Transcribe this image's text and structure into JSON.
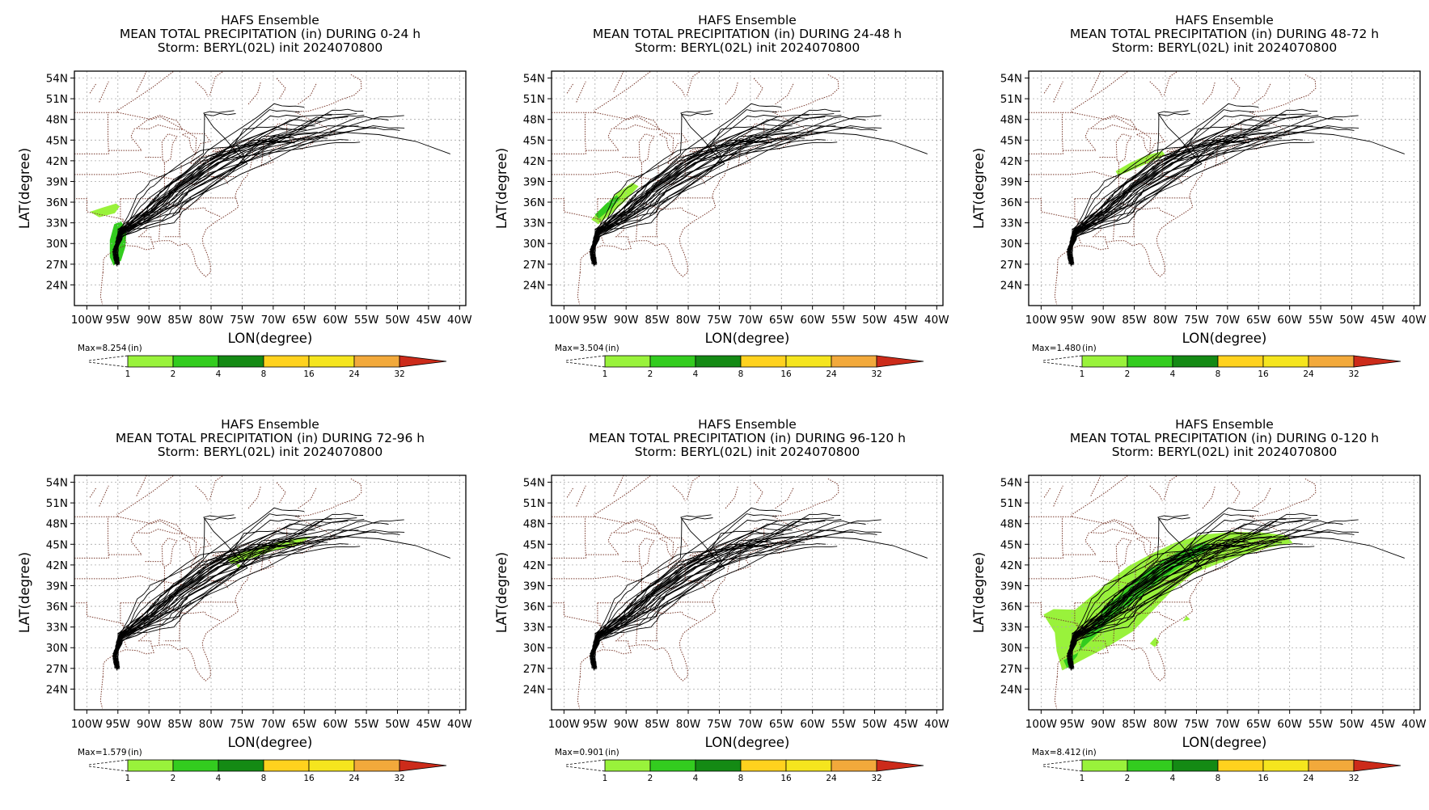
{
  "colors": {
    "track": "#000000",
    "border": "#7a3b2e",
    "grid": "#a8a8a8",
    "bins": [
      "#99f23b",
      "#33cc1f",
      "#148a14",
      "#ffd21e",
      "#f5e51e",
      "#f2a93b",
      "#e8843b",
      "#cc2b1a"
    ]
  },
  "chart_data": [
    {
      "type": "map",
      "title": "HAFS Ensemble",
      "subtitle": "MEAN TOTAL PRECIPITATION (in) DURING  0-24 h",
      "storm_line": "Storm: BERYL(02L) init 2024070800",
      "xlabel": "LON(degree)",
      "ylabel": "LAT(degree)",
      "xticks": [
        "100W",
        "95W",
        "90W",
        "85W",
        "80W",
        "75W",
        "70W",
        "65W",
        "60W",
        "55W",
        "50W",
        "45W",
        "40W"
      ],
      "yticks": [
        "54N",
        "51N",
        "48N",
        "45N",
        "42N",
        "39N",
        "36N",
        "33N",
        "30N",
        "27N",
        "24N"
      ],
      "xlim": [
        -102,
        -39
      ],
      "ylim": [
        21,
        55
      ],
      "grid": true,
      "max_label": "Max=8.254",
      "unit_label": "(in)",
      "legend_levels": [
        "1",
        "2",
        "4",
        "8",
        "16",
        "24",
        "32"
      ],
      "precip_regions": [
        {
          "color": "#33cc1f",
          "poly": [
            [
              -95.7,
              26.8
            ],
            [
              -94.5,
              27.5
            ],
            [
              -93.8,
              29.5
            ],
            [
              -93.6,
              32
            ],
            [
              -94.5,
              33.2
            ],
            [
              -95.6,
              32.8
            ],
            [
              -96.3,
              30.5
            ],
            [
              -96.3,
              28
            ]
          ]
        },
        {
          "color": "#99f23b",
          "poly": [
            [
              -98,
              33.8
            ],
            [
              -95.5,
              34.4
            ],
            [
              -94.7,
              35.4
            ],
            [
              -95.3,
              35.8
            ],
            [
              -97.5,
              35.2
            ],
            [
              -99.5,
              34.6
            ]
          ]
        }
      ]
    },
    {
      "type": "map",
      "title": "HAFS Ensemble",
      "subtitle": "MEAN TOTAL PRECIPITATION (in) DURING 24-48 h",
      "storm_line": "Storm: BERYL(02L) init 2024070800",
      "xlabel": "LON(degree)",
      "ylabel": "LAT(degree)",
      "xticks": [
        "100W",
        "95W",
        "90W",
        "85W",
        "80W",
        "75W",
        "70W",
        "65W",
        "60W",
        "55W",
        "50W",
        "45W",
        "40W"
      ],
      "yticks": [
        "54N",
        "51N",
        "48N",
        "45N",
        "42N",
        "39N",
        "36N",
        "33N",
        "30N",
        "27N",
        "24N"
      ],
      "xlim": [
        -102,
        -39
      ],
      "ylim": [
        21,
        55
      ],
      "grid": true,
      "max_label": "Max=3.504",
      "unit_label": "(in)",
      "legend_levels": [
        "1",
        "2",
        "4",
        "8",
        "16",
        "24",
        "32"
      ],
      "precip_regions": [
        {
          "color": "#99f23b",
          "poly": [
            [
              -95.6,
              33.5
            ],
            [
              -93.5,
              35.5
            ],
            [
              -91.5,
              37.3
            ],
            [
              -89,
              38.8
            ],
            [
              -88,
              38.3
            ],
            [
              -90,
              36.3
            ],
            [
              -92.5,
              34.2
            ],
            [
              -94.5,
              32.8
            ]
          ]
        },
        {
          "color": "#33cc1f",
          "poly": [
            [
              -95,
              34.2
            ],
            [
              -93.2,
              35.8
            ],
            [
              -91.5,
              37
            ],
            [
              -91,
              36.4
            ],
            [
              -92.8,
              34.8
            ],
            [
              -94.4,
              33.6
            ]
          ]
        }
      ]
    },
    {
      "type": "map",
      "title": "HAFS Ensemble",
      "subtitle": "MEAN TOTAL PRECIPITATION (in) DURING 48-72 h",
      "storm_line": "Storm: BERYL(02L) init 2024070800",
      "xlabel": "LON(degree)",
      "ylabel": "LAT(degree)",
      "xticks": [
        "100W",
        "95W",
        "90W",
        "85W",
        "80W",
        "75W",
        "70W",
        "65W",
        "60W",
        "55W",
        "50W",
        "45W",
        "40W"
      ],
      "yticks": [
        "54N",
        "51N",
        "48N",
        "45N",
        "42N",
        "39N",
        "36N",
        "33N",
        "30N",
        "27N",
        "24N"
      ],
      "xlim": [
        -102,
        -39
      ],
      "ylim": [
        21,
        55
      ],
      "grid": true,
      "max_label": "Max=1.480",
      "unit_label": "(in)",
      "legend_levels": [
        "1",
        "2",
        "4",
        "8",
        "16",
        "24",
        "32"
      ],
      "precip_regions": [
        {
          "color": "#99f23b",
          "poly": [
            [
              -88,
              40.5
            ],
            [
              -85.5,
              41.8
            ],
            [
              -83,
              42.8
            ],
            [
              -80.5,
              43.4
            ],
            [
              -80,
              42.8
            ],
            [
              -82.5,
              41.8
            ],
            [
              -85.5,
              40.6
            ],
            [
              -87.6,
              39.8
            ]
          ]
        }
      ]
    },
    {
      "type": "map",
      "title": "HAFS Ensemble",
      "subtitle": "MEAN TOTAL PRECIPITATION (in) DURING 72-96 h",
      "storm_line": "Storm: BERYL(02L) init 2024070800",
      "xlabel": "LON(degree)",
      "ylabel": "LAT(degree)",
      "xticks": [
        "100W",
        "95W",
        "90W",
        "85W",
        "80W",
        "75W",
        "70W",
        "65W",
        "60W",
        "55W",
        "50W",
        "45W",
        "40W"
      ],
      "yticks": [
        "54N",
        "51N",
        "48N",
        "45N",
        "42N",
        "39N",
        "36N",
        "33N",
        "30N",
        "27N",
        "24N"
      ],
      "xlim": [
        -102,
        -39
      ],
      "ylim": [
        21,
        55
      ],
      "grid": true,
      "max_label": "Max=1.579",
      "unit_label": "(in)",
      "legend_levels": [
        "1",
        "2",
        "4",
        "8",
        "16",
        "24",
        "32"
      ],
      "precip_regions": [
        {
          "color": "#99f23b",
          "poly": [
            [
              -77.5,
              43
            ],
            [
              -74,
              44.2
            ],
            [
              -70.5,
              45
            ],
            [
              -66.5,
              45.8
            ],
            [
              -64,
              46.2
            ],
            [
              -65.5,
              45
            ],
            [
              -69.5,
              44.2
            ],
            [
              -73.5,
              43
            ],
            [
              -76.8,
              42.2
            ]
          ]
        },
        {
          "color": "#99f23b",
          "poly": [
            [
              -76.2,
              42.3
            ],
            [
              -75.6,
              41.5
            ],
            [
              -75.2,
              42
            ]
          ]
        }
      ]
    },
    {
      "type": "map",
      "title": "HAFS Ensemble",
      "subtitle": "MEAN TOTAL PRECIPITATION (in) DURING 96-120 h",
      "storm_line": "Storm: BERYL(02L) init 2024070800",
      "xlabel": "LON(degree)",
      "ylabel": "LAT(degree)",
      "xticks": [
        "100W",
        "95W",
        "90W",
        "85W",
        "80W",
        "75W",
        "70W",
        "65W",
        "60W",
        "55W",
        "50W",
        "45W",
        "40W"
      ],
      "yticks": [
        "54N",
        "51N",
        "48N",
        "45N",
        "42N",
        "39N",
        "36N",
        "33N",
        "30N",
        "27N",
        "24N"
      ],
      "xlim": [
        -102,
        -39
      ],
      "ylim": [
        21,
        55
      ],
      "grid": true,
      "max_label": "Max=0.901",
      "unit_label": "(in)",
      "legend_levels": [
        "1",
        "2",
        "4",
        "8",
        "16",
        "24",
        "32"
      ],
      "precip_regions": []
    },
    {
      "type": "map",
      "title": "HAFS Ensemble",
      "subtitle": "MEAN TOTAL PRECIPITATION (in) DURING 0-120 h",
      "storm_line": "Storm: BERYL(02L) init 2024070800",
      "xlabel": "LON(degree)",
      "ylabel": "LAT(degree)",
      "xticks": [
        "100W",
        "95W",
        "90W",
        "85W",
        "80W",
        "75W",
        "70W",
        "65W",
        "60W",
        "55W",
        "50W",
        "45W",
        "40W"
      ],
      "yticks": [
        "54N",
        "51N",
        "48N",
        "45N",
        "42N",
        "39N",
        "36N",
        "33N",
        "30N",
        "27N",
        "24N"
      ],
      "xlim": [
        -102,
        -39
      ],
      "ylim": [
        21,
        55
      ],
      "grid": true,
      "max_label": "Max=8.412",
      "unit_label": "(in)",
      "legend_levels": [
        "1",
        "2",
        "4",
        "8",
        "16",
        "24",
        "32"
      ],
      "precip_regions": [
        {
          "color": "#99f23b",
          "poly": [
            [
              -96.6,
              26.7
            ],
            [
              -97.5,
              29.5
            ],
            [
              -97.8,
              32.2
            ],
            [
              -99.6,
              34.8
            ],
            [
              -98,
              35.6
            ],
            [
              -94.5,
              35.5
            ],
            [
              -91.5,
              37.8
            ],
            [
              -88.5,
              40
            ],
            [
              -86,
              41.8
            ],
            [
              -82.5,
              43.5
            ],
            [
              -78.5,
              45.2
            ],
            [
              -74,
              46.4
            ],
            [
              -69,
              46.8
            ],
            [
              -64.5,
              46.7
            ],
            [
              -60.5,
              46.3
            ],
            [
              -59.5,
              45.2
            ],
            [
              -63.5,
              44.5
            ],
            [
              -67.5,
              43.4
            ],
            [
              -71.5,
              42.2
            ],
            [
              -75.5,
              40.8
            ],
            [
              -78.8,
              38.4
            ],
            [
              -81.8,
              35.6
            ],
            [
              -85.2,
              32.4
            ],
            [
              -89,
              30.3
            ],
            [
              -92.6,
              28.6
            ]
          ]
        },
        {
          "color": "#33cc1f",
          "poly": [
            [
              -95.8,
              27
            ],
            [
              -94.2,
              28.8
            ],
            [
              -93.4,
              31
            ],
            [
              -91.6,
              33.6
            ],
            [
              -89.2,
              36.2
            ],
            [
              -86.2,
              38.6
            ],
            [
              -82.6,
              41.4
            ],
            [
              -78.2,
              43.8
            ],
            [
              -73.8,
              45.3
            ],
            [
              -72.4,
              44.6
            ],
            [
              -76.2,
              42.6
            ],
            [
              -80.4,
              40
            ],
            [
              -84.4,
              37.2
            ],
            [
              -88.4,
              34.4
            ],
            [
              -91.4,
              31.6
            ],
            [
              -94.2,
              29.2
            ],
            [
              -96.4,
              28.2
            ]
          ]
        },
        {
          "color": "#99f23b",
          "poly": [
            [
              -82.5,
              30.6
            ],
            [
              -81.6,
              31.5
            ],
            [
              -81,
              30.8
            ],
            [
              -81.7,
              30.1
            ]
          ]
        },
        {
          "color": "#99f23b",
          "poly": [
            [
              -77.2,
              33.8
            ],
            [
              -76.6,
              34.6
            ],
            [
              -76,
              34.1
            ]
          ]
        }
      ]
    }
  ]
}
